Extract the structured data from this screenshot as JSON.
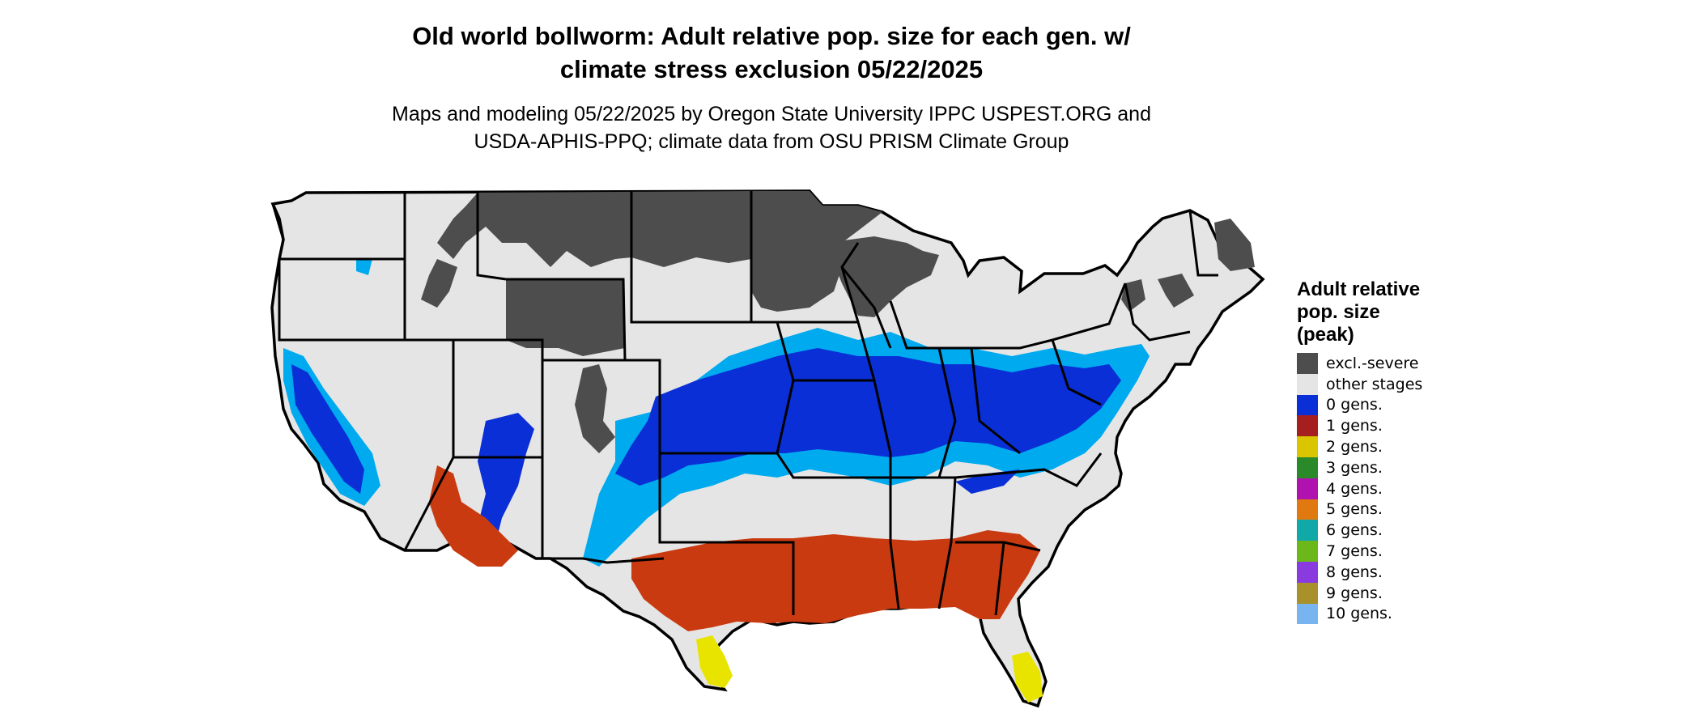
{
  "map": {
    "title": [
      "Old world bollworm: Adult relative pop. size for each gen. w/",
      "climate stress exclusion 05/22/2025"
    ],
    "subtitle": [
      "Maps and modeling 05/22/2025 by Oregon State University IPPC USPEST.ORG and",
      "USDA-APHIS-PPQ; climate data from OSU PRISM Climate Group"
    ],
    "region": "contiguous United States",
    "colors": {
      "background_land": "#e5e5e5",
      "excl_severe": "#4d4d4d",
      "zero_gens_dark": "#0a2fd6",
      "zero_gens_light": "#00aaee",
      "one_gen": "#c93a10",
      "two_gens": "#e8e400",
      "state_border": "#000000"
    }
  },
  "legend": {
    "title": [
      "Adult relative",
      "pop. size",
      "(peak)"
    ],
    "items": [
      {
        "label": "excl.-severe",
        "color": "#4d4d4d"
      },
      {
        "label": "other stages",
        "color": "#e5e5e5"
      },
      {
        "label": "0 gens.",
        "color": "#0a2fd6"
      },
      {
        "label": "1 gens.",
        "color": "#a61f1f"
      },
      {
        "label": "2 gens.",
        "color": "#d9c500"
      },
      {
        "label": "3 gens.",
        "color": "#2a8a2a"
      },
      {
        "label": "4 gens.",
        "color": "#b012b0"
      },
      {
        "label": "5 gens.",
        "color": "#e07a10"
      },
      {
        "label": "6 gens.",
        "color": "#11a8a8"
      },
      {
        "label": "7 gens.",
        "color": "#6cb81a"
      },
      {
        "label": "8 gens.",
        "color": "#8a3be0"
      },
      {
        "label": "9 gens.",
        "color": "#a8902a"
      },
      {
        "label": "10 gens.",
        "color": "#78b4f0"
      }
    ]
  }
}
